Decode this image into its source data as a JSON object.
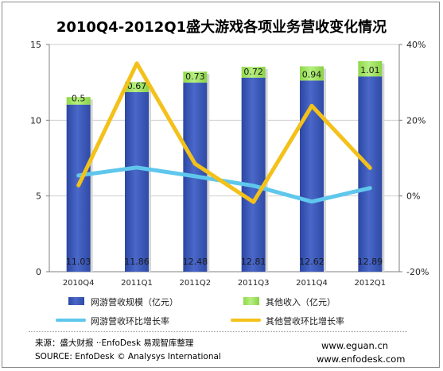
{
  "title": "2010Q4-2012Q1盛大游戏各项业务营收变化情况",
  "chart_data": {
    "type": "bar",
    "categories": [
      "2010Q4",
      "2011Q1",
      "2011Q2",
      "2011Q3",
      "2011Q4",
      "2012Q1"
    ],
    "left_axis": {
      "ylim": [
        0,
        15
      ],
      "ticks": [
        "0",
        "5",
        "10",
        "15"
      ]
    },
    "right_axis": {
      "ylim": [
        -20,
        40
      ],
      "ticks": [
        "-20%",
        "0%",
        "20%",
        "40%"
      ]
    },
    "grid": true,
    "legend_position": "bottom",
    "stacked_bars": [
      {
        "name": "网游营收规模（亿元）",
        "color": "#3a56b4",
        "values": [
          11.03,
          11.86,
          12.48,
          12.81,
          12.62,
          12.89
        ],
        "labels": [
          "11.03",
          "11.86",
          "12.48",
          "12.81",
          "12.62",
          "12.89"
        ]
      },
      {
        "name": "其他收入（亿元）",
        "color": "#9ee05a",
        "values": [
          0.5,
          0.67,
          0.73,
          0.72,
          0.94,
          1.01
        ],
        "labels": [
          "0.5",
          "0.67",
          "0.73",
          "0.72",
          "0.94",
          "1.01"
        ]
      }
    ],
    "lines": [
      {
        "name": "网游营收环比增长率",
        "color": "#5fc7ec",
        "axis": "right",
        "values": [
          5.4,
          7.5,
          5.2,
          2.7,
          -1.5,
          2.1
        ]
      },
      {
        "name": "其他营收环比增长率",
        "color": "#f3c11a",
        "axis": "right",
        "values": [
          2.8,
          35.0,
          8.5,
          -1.6,
          23.8,
          7.4
        ]
      }
    ]
  },
  "footer": {
    "source_cn": "来源：盛大财报 ··EnfoDesk 易观智库整理",
    "source_en": "SOURCE: EnfoDesk © Analysys International",
    "website1": "www.eguan.cn",
    "website2": "www.enfodesk.com"
  }
}
